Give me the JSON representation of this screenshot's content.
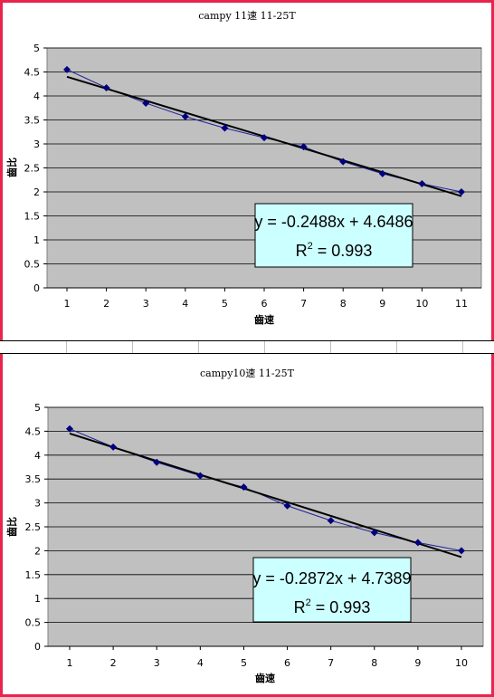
{
  "chart_data": [
    {
      "type": "scatter",
      "title": "campy 11速 11-25T",
      "xlabel": "齒速",
      "ylabel": "齒比",
      "x": [
        1,
        2,
        3,
        4,
        5,
        6,
        7,
        8,
        9,
        10,
        11
      ],
      "series": [
        {
          "values": [
            4.55,
            4.17,
            3.85,
            3.57,
            3.33,
            3.13,
            2.94,
            2.63,
            2.38,
            2.17,
            2.0
          ],
          "color": "#1f1f9a"
        }
      ],
      "trendline": {
        "slope": -0.2488,
        "intercept": 4.6486,
        "equation": "y = -0.2488x + 4.6486",
        "r2_prefix": "R",
        "r2_exp": "2",
        "r2_suffix": " = 0.993"
      },
      "xlim": [
        1,
        11
      ],
      "ylim": [
        0,
        5
      ],
      "yticks": [
        "0",
        "0.5",
        "1",
        "1.5",
        "2",
        "2.5",
        "3",
        "3.5",
        "4",
        "4.5",
        "5"
      ],
      "xticks": [
        "1",
        "2",
        "3",
        "4",
        "5",
        "6",
        "7",
        "8",
        "9",
        "10",
        "11"
      ],
      "grid": true,
      "plot_bg": "#c0c0c0"
    },
    {
      "type": "scatter",
      "title": "campy10速 11-25T",
      "xlabel": "齒速",
      "ylabel": "齒比",
      "x": [
        1,
        2,
        3,
        4,
        5,
        6,
        7,
        8,
        9,
        10
      ],
      "series": [
        {
          "values": [
            4.55,
            4.17,
            3.85,
            3.57,
            3.33,
            2.94,
            2.63,
            2.38,
            2.17,
            2.0
          ],
          "color": "#1f1f9a"
        }
      ],
      "trendline": {
        "slope": -0.2872,
        "intercept": 4.7389,
        "equation": "y = -0.2872x + 4.7389",
        "r2_prefix": "R",
        "r2_exp": "2",
        "r2_suffix": " = 0.993"
      },
      "xlim": [
        1,
        10
      ],
      "ylim": [
        0,
        5
      ],
      "yticks": [
        "0",
        "0.5",
        "1",
        "1.5",
        "2",
        "2.5",
        "3",
        "3.5",
        "4",
        "4.5",
        "5"
      ],
      "xticks": [
        "1",
        "2",
        "3",
        "4",
        "5",
        "6",
        "7",
        "8",
        "9",
        "10"
      ],
      "grid": true,
      "plot_bg": "#c0c0c0"
    }
  ],
  "colors": {
    "frame": "#e8244e",
    "equation_box": "#ccffff",
    "trendline": "#000000"
  }
}
